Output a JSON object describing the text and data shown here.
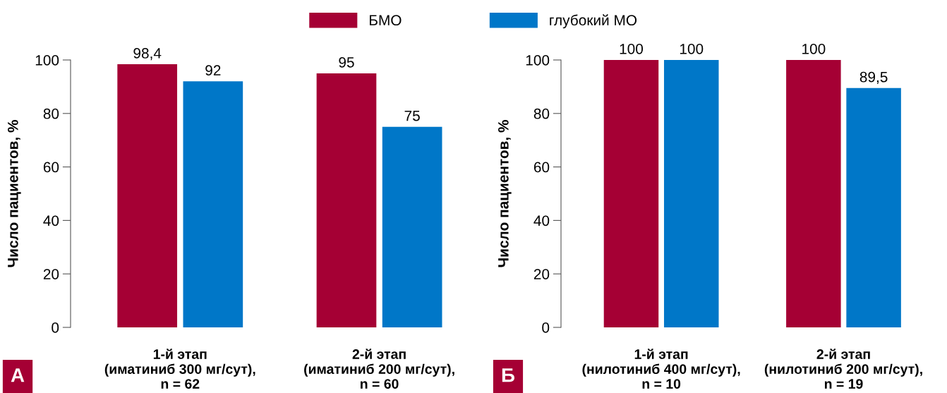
{
  "chart_data": [
    {
      "type": "bar",
      "ylabel": "Число пациентов, %",
      "categories": [
        "1-й этап\n(иматиниб 300 мг/сут),\nn = 62",
        "2-й этап\n(иматиниб 200 мг/сут),\nn = 60"
      ],
      "series": [
        {
          "name": "БМО",
          "color": "#a50034",
          "values": [
            98.4,
            95
          ],
          "value_labels": [
            "98,4",
            "95"
          ]
        },
        {
          "name": "глубокий МО",
          "color": "#0077c8",
          "values": [
            92,
            75
          ],
          "value_labels": [
            "92",
            "75"
          ]
        }
      ],
      "ylim": [
        0,
        100
      ],
      "yticks": [
        0,
        20,
        40,
        60,
        80,
        100
      ],
      "grid": false,
      "legend": "top",
      "annotations": [
        "А"
      ]
    },
    {
      "type": "bar",
      "ylabel": "Число пациентов, %",
      "categories": [
        "1-й этап\n(нилотиниб 400 мг/сут),\nn = 10",
        "2-й этап\n(нилотиниб 200 мг/сут),\nn = 19"
      ],
      "series": [
        {
          "color": "#a50034",
          "values": [
            100,
            100
          ],
          "value_labels": [
            "100",
            "100"
          ]
        },
        {
          "color": "#0077c8",
          "values": [
            100,
            89.5
          ],
          "value_labels": [
            "100",
            "89,5"
          ]
        }
      ],
      "ylim": [
        0,
        100
      ],
      "yticks": [
        0,
        20,
        40,
        60,
        80,
        100
      ],
      "grid": false,
      "legend": false,
      "annotations": [
        "Б"
      ]
    }
  ]
}
